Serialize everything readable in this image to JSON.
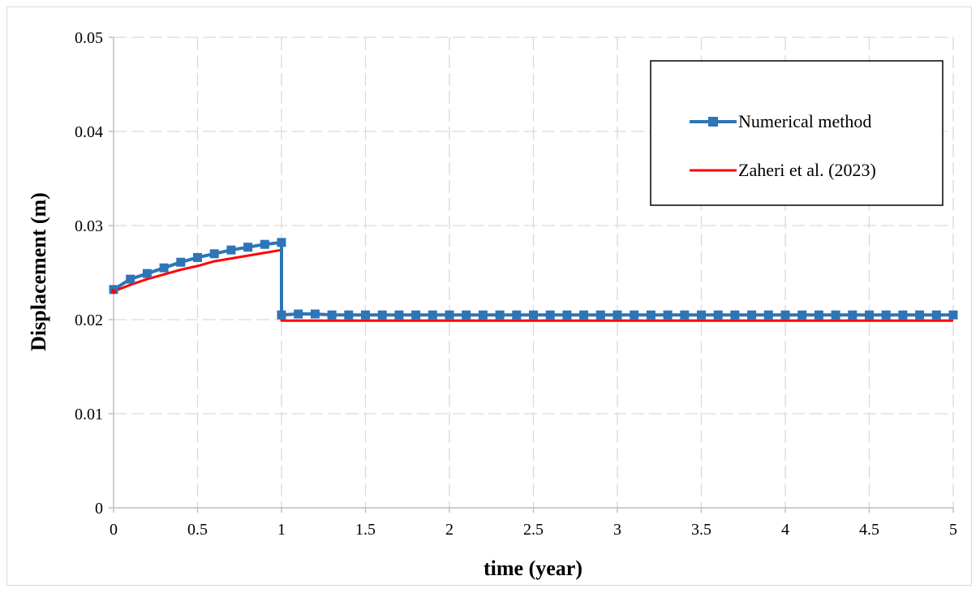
{
  "chart_data": {
    "type": "line",
    "xlabel": "time (year)",
    "ylabel": "Displacement (m)",
    "xlim": [
      0,
      5
    ],
    "ylim": [
      0,
      0.05
    ],
    "xticks": [
      0,
      0.5,
      1,
      1.5,
      2,
      2.5,
      3,
      3.5,
      4,
      4.5,
      5
    ],
    "xtick_labels": [
      "0",
      "0.5",
      "1",
      "1.5",
      "2",
      "2.5",
      "3",
      "3.5",
      "4",
      "4.5",
      "5"
    ],
    "yticks": [
      0,
      0.01,
      0.02,
      0.03,
      0.04,
      0.05
    ],
    "ytick_labels": [
      "0",
      "0.01",
      "0.02",
      "0.03",
      "0.04",
      "0.05"
    ],
    "grid": "dashed horizontal and vertical",
    "legend_position": "top-right",
    "series": [
      {
        "name": "Numerical method",
        "color": "#2e75b6",
        "marker": "square",
        "x": [
          0,
          0.1,
          0.2,
          0.3,
          0.4,
          0.5,
          0.6,
          0.7,
          0.8,
          0.9,
          1.0,
          1.0,
          1.1,
          1.2,
          1.3,
          1.4,
          1.5,
          1.6,
          1.7,
          1.8,
          1.9,
          2.0,
          2.1,
          2.2,
          2.3,
          2.4,
          2.5,
          2.6,
          2.7,
          2.8,
          2.9,
          3.0,
          3.1,
          3.2,
          3.3,
          3.4,
          3.5,
          3.6,
          3.7,
          3.8,
          3.9,
          4.0,
          4.1,
          4.2,
          4.3,
          4.4,
          4.5,
          4.6,
          4.7,
          4.8,
          4.9,
          5.0
        ],
        "y": [
          0.0232,
          0.0243,
          0.0249,
          0.0255,
          0.0261,
          0.0266,
          0.027,
          0.0274,
          0.0277,
          0.028,
          0.0282,
          0.0205,
          0.0206,
          0.0206,
          0.0205,
          0.0205,
          0.0205,
          0.0205,
          0.0205,
          0.0205,
          0.0205,
          0.0205,
          0.0205,
          0.0205,
          0.0205,
          0.0205,
          0.0205,
          0.0205,
          0.0205,
          0.0205,
          0.0205,
          0.0205,
          0.0205,
          0.0205,
          0.0205,
          0.0205,
          0.0205,
          0.0205,
          0.0205,
          0.0205,
          0.0205,
          0.0205,
          0.0205,
          0.0205,
          0.0205,
          0.0205,
          0.0205,
          0.0205,
          0.0205,
          0.0205,
          0.0205,
          0.0205
        ]
      },
      {
        "name": "Zaheri et al. (2023)",
        "color": "#ff0000",
        "marker": "none",
        "x": [
          0,
          0.1,
          0.2,
          0.3,
          0.4,
          0.5,
          0.6,
          0.7,
          0.8,
          0.9,
          1.0,
          1.0,
          1.1,
          1.5,
          2.0,
          2.5,
          3.0,
          3.5,
          4.0,
          4.5,
          5.0
        ],
        "y": [
          0.023,
          0.0237,
          0.0243,
          0.0248,
          0.0253,
          0.0257,
          0.0262,
          0.0265,
          0.0268,
          0.0271,
          0.0274,
          0.0199,
          0.0199,
          0.0199,
          0.0199,
          0.0199,
          0.0199,
          0.0199,
          0.0199,
          0.0199,
          0.0199
        ]
      }
    ]
  }
}
